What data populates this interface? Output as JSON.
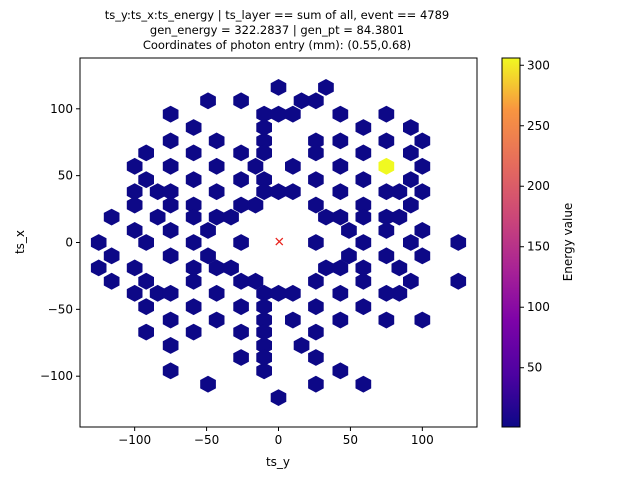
{
  "chart_data": {
    "type": "hexbin",
    "title_lines": [
      "ts_y:ts_x:ts_energy   |   ts_layer == sum of all, event == 4789",
      "gen_energy = 322.2837    |    gen_pt = 84.3801",
      "Coordinates of photon entry (mm): (0.55,0.68)"
    ],
    "xlabel": "ts_y",
    "ylabel": "ts_x",
    "xlim": [
      -138,
      138
    ],
    "ylim": [
      -138,
      138
    ],
    "xticks": [
      -100,
      -50,
      0,
      50,
      100
    ],
    "yticks": [
      -100,
      -50,
      0,
      50,
      100
    ],
    "colorbar": {
      "label": "Energy value",
      "colormap": "plasma",
      "range": [
        1,
        306
      ],
      "ticks": [
        50,
        100,
        150,
        200,
        250,
        300
      ]
    },
    "marker": {
      "x": 0.55,
      "y": 0.68,
      "symbol": "x",
      "color": "#e8221c"
    },
    "cells": [
      [
        0,
        116,
        1
      ],
      [
        33,
        116,
        1
      ],
      [
        -49,
        106,
        1
      ],
      [
        -26,
        106,
        1
      ],
      [
        16,
        106,
        1
      ],
      [
        26,
        106,
        1
      ],
      [
        -75,
        96,
        1
      ],
      [
        -10,
        96,
        1
      ],
      [
        0,
        96,
        1
      ],
      [
        10,
        96,
        1
      ],
      [
        43,
        96,
        1
      ],
      [
        75,
        96,
        1
      ],
      [
        -59,
        86,
        1
      ],
      [
        -10,
        86,
        1
      ],
      [
        59,
        86,
        1
      ],
      [
        92,
        86,
        1
      ],
      [
        -75,
        76,
        1
      ],
      [
        -43,
        76,
        1
      ],
      [
        -10,
        76,
        1
      ],
      [
        26,
        76,
        1
      ],
      [
        43,
        76,
        1
      ],
      [
        75,
        76,
        1
      ],
      [
        100,
        76,
        1
      ],
      [
        -92,
        67,
        1
      ],
      [
        -59,
        67,
        1
      ],
      [
        -26,
        67,
        1
      ],
      [
        -10,
        67,
        1
      ],
      [
        26,
        67,
        1
      ],
      [
        59,
        67,
        1
      ],
      [
        92,
        67,
        1
      ],
      [
        -100,
        57,
        1
      ],
      [
        -75,
        57,
        1
      ],
      [
        -43,
        57,
        1
      ],
      [
        -16,
        57,
        1
      ],
      [
        10,
        57,
        1
      ],
      [
        43,
        57,
        1
      ],
      [
        75,
        57,
        306
      ],
      [
        100,
        57,
        1
      ],
      [
        -92,
        47,
        1
      ],
      [
        -59,
        47,
        1
      ],
      [
        -26,
        47,
        1
      ],
      [
        -10,
        47,
        1
      ],
      [
        26,
        47,
        1
      ],
      [
        59,
        47,
        1
      ],
      [
        92,
        47,
        1
      ],
      [
        -100,
        38,
        1
      ],
      [
        -84,
        38,
        1
      ],
      [
        -75,
        38,
        1
      ],
      [
        -43,
        38,
        1
      ],
      [
        -10,
        38,
        1
      ],
      [
        0,
        38,
        1
      ],
      [
        10,
        38,
        1
      ],
      [
        43,
        38,
        1
      ],
      [
        75,
        38,
        1
      ],
      [
        84,
        38,
        1
      ],
      [
        100,
        38,
        1
      ],
      [
        -100,
        28,
        1
      ],
      [
        -75,
        28,
        1
      ],
      [
        -59,
        28,
        1
      ],
      [
        -26,
        28,
        1
      ],
      [
        -16,
        28,
        1
      ],
      [
        26,
        28,
        1
      ],
      [
        59,
        28,
        1
      ],
      [
        92,
        28,
        1
      ],
      [
        -84,
        19,
        1
      ],
      [
        -59,
        19,
        1
      ],
      [
        -43,
        19,
        1
      ],
      [
        -33,
        19,
        1
      ],
      [
        33,
        19,
        1
      ],
      [
        43,
        19,
        1
      ],
      [
        59,
        19,
        1
      ],
      [
        75,
        19,
        1
      ],
      [
        -116,
        19,
        1
      ],
      [
        84,
        19,
        1
      ],
      [
        -100,
        9,
        1
      ],
      [
        -75,
        9,
        1
      ],
      [
        -49,
        9,
        1
      ],
      [
        49,
        9,
        1
      ],
      [
        75,
        9,
        1
      ],
      [
        100,
        9,
        1
      ],
      [
        -125,
        0,
        1
      ],
      [
        -92,
        0,
        1
      ],
      [
        -59,
        0,
        1
      ],
      [
        -26,
        0,
        1
      ],
      [
        26,
        0,
        1
      ],
      [
        59,
        0,
        1
      ],
      [
        92,
        0,
        1
      ],
      [
        125,
        0,
        1
      ],
      [
        -116,
        -10,
        1
      ],
      [
        -75,
        -10,
        1
      ],
      [
        -49,
        -10,
        1
      ],
      [
        49,
        -10,
        1
      ],
      [
        75,
        -10,
        1
      ],
      [
        100,
        -10,
        1
      ],
      [
        -125,
        -19,
        1
      ],
      [
        -100,
        -19,
        1
      ],
      [
        -59,
        -19,
        1
      ],
      [
        -43,
        -19,
        1
      ],
      [
        -33,
        -19,
        1
      ],
      [
        33,
        -19,
        1
      ],
      [
        43,
        -19,
        1
      ],
      [
        59,
        -19,
        1
      ],
      [
        84,
        -19,
        1
      ],
      [
        -116,
        -29,
        1
      ],
      [
        -92,
        -29,
        1
      ],
      [
        -59,
        -29,
        1
      ],
      [
        -26,
        -29,
        1
      ],
      [
        -16,
        -29,
        1
      ],
      [
        26,
        -29,
        1
      ],
      [
        59,
        -29,
        1
      ],
      [
        92,
        -29,
        1
      ],
      [
        125,
        -29,
        1
      ],
      [
        -100,
        -38,
        1
      ],
      [
        -84,
        -38,
        1
      ],
      [
        -75,
        -38,
        1
      ],
      [
        -43,
        -38,
        1
      ],
      [
        -10,
        -38,
        1
      ],
      [
        0,
        -38,
        1
      ],
      [
        10,
        -38,
        1
      ],
      [
        43,
        -38,
        1
      ],
      [
        75,
        -38,
        1
      ],
      [
        84,
        -38,
        1
      ],
      [
        -92,
        -48,
        1
      ],
      [
        -59,
        -48,
        1
      ],
      [
        -26,
        -48,
        1
      ],
      [
        -10,
        -48,
        1
      ],
      [
        26,
        -48,
        1
      ],
      [
        59,
        -48,
        1
      ],
      [
        -75,
        -58,
        1
      ],
      [
        -43,
        -58,
        1
      ],
      [
        -10,
        -58,
        1
      ],
      [
        10,
        -58,
        1
      ],
      [
        43,
        -58,
        1
      ],
      [
        75,
        -58,
        1
      ],
      [
        100,
        -58,
        1
      ],
      [
        -92,
        -67,
        1
      ],
      [
        -59,
        -67,
        1
      ],
      [
        -26,
        -67,
        1
      ],
      [
        -10,
        -67,
        1
      ],
      [
        26,
        -67,
        1
      ],
      [
        -75,
        -77,
        1
      ],
      [
        -10,
        -77,
        1
      ],
      [
        16,
        -77,
        1
      ],
      [
        -26,
        -86,
        1
      ],
      [
        -10,
        -86,
        1
      ],
      [
        26,
        -86,
        1
      ],
      [
        -75,
        -96,
        1
      ],
      [
        -10,
        -96,
        1
      ],
      [
        43,
        -96,
        1
      ],
      [
        -49,
        -106,
        1
      ],
      [
        26,
        -106,
        1
      ],
      [
        59,
        -106,
        1
      ],
      [
        0,
        -116,
        1
      ]
    ]
  }
}
